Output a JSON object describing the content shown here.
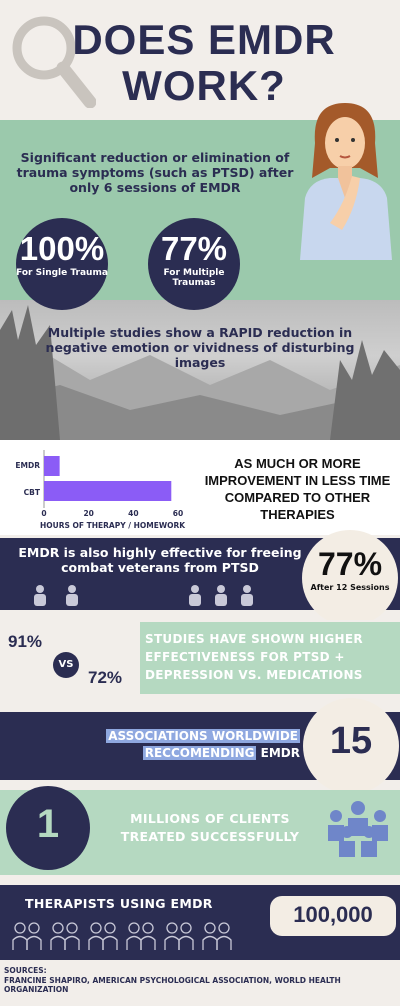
{
  "title": {
    "line1": "DOES EMDR",
    "line2": "WORK?"
  },
  "intro": {
    "text": "Significant reduction or elimination of trauma symptoms (such as PTSD) after only 6 sessions of EMDR"
  },
  "stats": [
    {
      "value": "100%",
      "label": "For Single Trauma"
    },
    {
      "value": "77%",
      "label": "For Multiple Traumas"
    }
  ],
  "rapid": {
    "text": "Multiple studies show a RAPID reduction in negative emotion or vividness of disturbing images"
  },
  "chart_data": {
    "type": "bar",
    "orientation": "horizontal",
    "categories": [
      "EMDR",
      "CBT"
    ],
    "values": [
      7,
      57
    ],
    "xlim": [
      0,
      60
    ],
    "xticks": [
      "0",
      "20",
      "40",
      "60"
    ],
    "xlabel": "HOURS OF THERAPY / HOMEWORK",
    "ylabel": "",
    "title": "",
    "bar_color": "#8b5cf6"
  },
  "improvement": {
    "text": "AS MUCH OR MORE IMPROVEMENT IN LESS TIME COMPARED TO OTHER THERAPIES"
  },
  "veterans": {
    "text": "EMDR is also highly effective for freeing combat veterans from PTSD",
    "value": "77%",
    "sub": "After 12 Sessions"
  },
  "studies": {
    "left_value": "91%",
    "vs": "VS",
    "right_value": "72%",
    "text": "STUDIES HAVE SHOWN HIGHER EFFECTIVENESS FOR PTSD + DEPRESSION VS. MEDICATIONS"
  },
  "associations": {
    "line1": "ASSOCIATIONS WORLDWIDE",
    "line2a": "RECCOMENDING",
    "line2b": " EMDR",
    "value": "15"
  },
  "millions": {
    "value": "1",
    "text": "MILLIONS OF CLIENTS TREATED SUCCESSFULLY"
  },
  "therapists": {
    "text": "THERAPISTS USING EMDR",
    "value": "100,000"
  },
  "sources": {
    "label": "SOURCES:",
    "text": "FRANCINE SHAPIRO, AMERICAN PSYCHOLOGICAL ASSOCIATION, WORLD HEALTH ORGANIZATION"
  },
  "colors": {
    "navy": "#2b2d52",
    "green": "#9bc9ac",
    "purple": "#8b5cf6",
    "cream": "#f2eeea"
  }
}
